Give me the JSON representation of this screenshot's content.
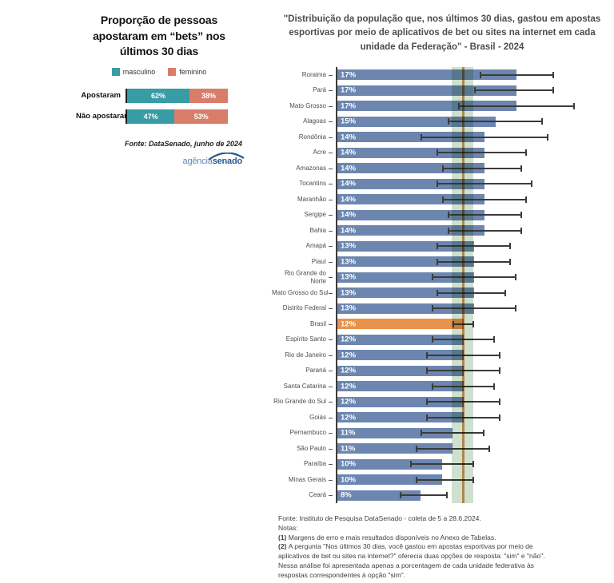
{
  "left_chart": {
    "title": "Proporção de pessoas apostaram em “bets” nos últimos 30 dias",
    "source": "Fonte: DataSenado, junho de 2024",
    "logo": {
      "part1": "agência",
      "part2": "senado"
    }
  },
  "right_chart": {
    "title": "\"Distribuição da população que, nos últimos 30 dias, gastou em apostas esportivas por meio de aplicativos de bet ou sites na internet em cada unidade da Federação\" - Brasil - 2024",
    "footer": {
      "fonte": "Fonte: Instituto de Pesquisa DataSenado - coleta de 5 a 28.6.2024.",
      "notas_label": "Notas:",
      "notes": [
        {
          "num": "(1)",
          "text": "Margens de erro e mais resultados disponíveis no Anexo de Tabelas."
        },
        {
          "num": "(2)",
          "text": "A pergunta \"Nos últimos 30 dias, você gastou em apostas esportivas por meio de aplicativos de bet ou sites na internet?\" oferecia duas opções de resposta: \"sim\" e \"não\". Nessa análise foi apresentada apenas a porcentagem de cada unidade federativa às respostas correspondentes à opção \"sim\"."
        }
      ]
    }
  },
  "chart_data": [
    {
      "type": "bar",
      "subtype": "horizontal-stacked",
      "title": "Proporção de pessoas apostaram em “bets” nos últimos 30 dias",
      "categories": [
        "Apostaram",
        "Não apostaram"
      ],
      "series": [
        {
          "name": "masculino",
          "color": "#389CA4",
          "values": [
            62,
            47
          ]
        },
        {
          "name": "feminino",
          "color": "#D97D6B",
          "values": [
            38,
            53
          ]
        }
      ],
      "unit": "%",
      "legend_position": "top",
      "source": "Fonte: DataSenado, junho de 2024"
    },
    {
      "type": "bar",
      "subtype": "horizontal-with-error-bars",
      "title": "\"Distribuição da população que, nos últimos 30 dias, gastou em apostas esportivas por meio de aplicativos de bet ou sites na internet em cada unidade da Federação\" - Brasil - 2024",
      "unit": "%",
      "xlim": [
        0,
        26
      ],
      "grid": false,
      "bar_color": "#6C86AF",
      "highlight_category": "Brasil",
      "highlight_bar_color": "#E8924A",
      "reference_line": {
        "value": 12,
        "color": "#D59B59"
      },
      "reference_band": {
        "from": 10.9,
        "to": 12.9,
        "color": "#CFE0CF"
      },
      "rows": [
        {
          "label": "Roraima",
          "value": 17,
          "err_low": 13.5,
          "err_high": 20.5
        },
        {
          "label": "Pará",
          "value": 17,
          "err_low": 13.0,
          "err_high": 20.5
        },
        {
          "label": "Mato Grosso",
          "value": 17,
          "err_low": 11.5,
          "err_high": 22.5
        },
        {
          "label": "Alagoas",
          "value": 15,
          "err_low": 10.5,
          "err_high": 19.5
        },
        {
          "label": "Rondônia",
          "value": 14,
          "err_low": 8.0,
          "err_high": 20.0
        },
        {
          "label": "Acre",
          "value": 14,
          "err_low": 9.5,
          "err_high": 18.0
        },
        {
          "label": "Amazonas",
          "value": 14,
          "err_low": 10.0,
          "err_high": 17.5
        },
        {
          "label": "Tocantins",
          "value": 14,
          "err_low": 9.5,
          "err_high": 18.5
        },
        {
          "label": "Maranhão",
          "value": 14,
          "err_low": 10.0,
          "err_high": 18.0
        },
        {
          "label": "Sergipe",
          "value": 14,
          "err_low": 10.5,
          "err_high": 17.5
        },
        {
          "label": "Bahia",
          "value": 14,
          "err_low": 10.5,
          "err_high": 17.5
        },
        {
          "label": "Amapá",
          "value": 13,
          "err_low": 9.5,
          "err_high": 16.5
        },
        {
          "label": "Piauí",
          "value": 13,
          "err_low": 9.5,
          "err_high": 16.5
        },
        {
          "label": "Rio Grande do\nNorte",
          "value": 13,
          "err_low": 9.0,
          "err_high": 17.0
        },
        {
          "label": "Mato Grosso do Sul",
          "value": 13,
          "err_low": 9.5,
          "err_high": 16.0
        },
        {
          "label": "Distrito Federal",
          "value": 13,
          "err_low": 9.0,
          "err_high": 17.0
        },
        {
          "label": "Brasil",
          "value": 12,
          "err_low": 11.0,
          "err_high": 13.0
        },
        {
          "label": "Espírito Santo",
          "value": 12,
          "err_low": 9.0,
          "err_high": 15.0
        },
        {
          "label": "Rio de Janeiro",
          "value": 12,
          "err_low": 8.5,
          "err_high": 15.5
        },
        {
          "label": "Paraná",
          "value": 12,
          "err_low": 8.5,
          "err_high": 15.5
        },
        {
          "label": "Santa Catarina",
          "value": 12,
          "err_low": 9.0,
          "err_high": 15.0
        },
        {
          "label": "Rio Grande do Sul",
          "value": 12,
          "err_low": 8.5,
          "err_high": 15.5
        },
        {
          "label": "Goiás",
          "value": 12,
          "err_low": 8.5,
          "err_high": 15.5
        },
        {
          "label": "Pernambuco",
          "value": 11,
          "err_low": 8.0,
          "err_high": 14.0
        },
        {
          "label": "São Paulo",
          "value": 11,
          "err_low": 7.5,
          "err_high": 14.5
        },
        {
          "label": "Paraíba",
          "value": 10,
          "err_low": 7.0,
          "err_high": 13.0
        },
        {
          "label": "Minas Gerais",
          "value": 10,
          "err_low": 7.5,
          "err_high": 13.0
        },
        {
          "label": "Ceará",
          "value": 8,
          "err_low": 6.0,
          "err_high": 10.5
        }
      ]
    }
  ]
}
